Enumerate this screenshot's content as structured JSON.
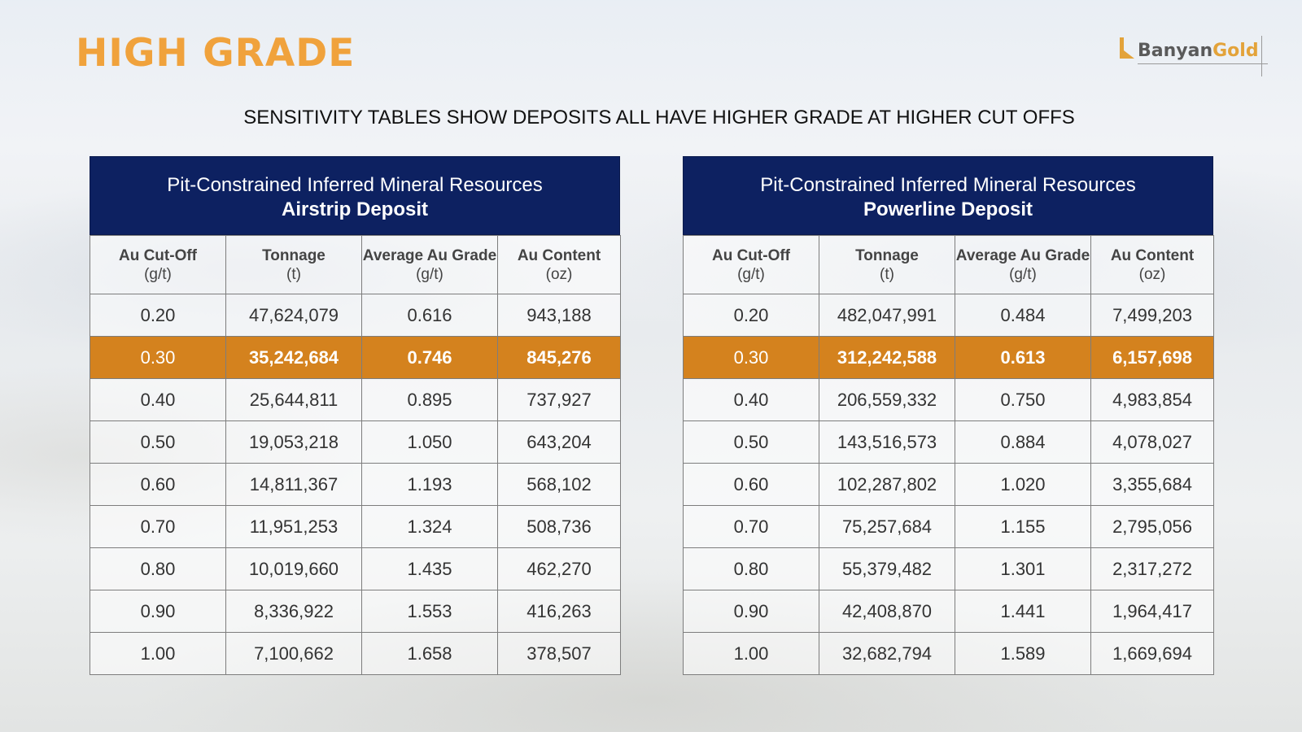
{
  "title": "HIGH GRADE",
  "logo": {
    "part1": "Banyan",
    "part2": "Gold"
  },
  "subtitle": "SENSITIVITY TABLES SHOW DEPOSITS ALL HAVE HIGHER GRADE AT HIGHER CUT OFFS",
  "colors": {
    "title": "#f0a23c",
    "header_bg": "#0d2161",
    "highlight": "#d4821e"
  },
  "columns": [
    {
      "name": "Au Cut-Off",
      "unit": "(g/t)"
    },
    {
      "name": "Tonnage",
      "unit": "(t)"
    },
    {
      "name": "Average Au Grade",
      "unit": "(g/t)"
    },
    {
      "name": "Au Content",
      "unit": "(oz)"
    }
  ],
  "tables": [
    {
      "heading": "Pit-Constrained Inferred Mineral Resources",
      "deposit": "Airstrip Deposit",
      "highlight_row": 1,
      "rows": [
        [
          "0.20",
          "47,624,079",
          "0.616",
          "943,188"
        ],
        [
          "0.30",
          "35,242,684",
          "0.746",
          "845,276"
        ],
        [
          "0.40",
          "25,644,811",
          "0.895",
          "737,927"
        ],
        [
          "0.50",
          "19,053,218",
          "1.050",
          "643,204"
        ],
        [
          "0.60",
          "14,811,367",
          "1.193",
          "568,102"
        ],
        [
          "0.70",
          "11,951,253",
          "1.324",
          "508,736"
        ],
        [
          "0.80",
          "10,019,660",
          "1.435",
          "462,270"
        ],
        [
          "0.90",
          "8,336,922",
          "1.553",
          "416,263"
        ],
        [
          "1.00",
          "7,100,662",
          "1.658",
          "378,507"
        ]
      ]
    },
    {
      "heading": "Pit-Constrained Inferred Mineral Resources",
      "deposit": "Powerline Deposit",
      "highlight_row": 1,
      "rows": [
        [
          "0.20",
          "482,047,991",
          "0.484",
          "7,499,203"
        ],
        [
          "0.30",
          "312,242,588",
          "0.613",
          "6,157,698"
        ],
        [
          "0.40",
          "206,559,332",
          "0.750",
          "4,983,854"
        ],
        [
          "0.50",
          "143,516,573",
          "0.884",
          "4,078,027"
        ],
        [
          "0.60",
          "102,287,802",
          "1.020",
          "3,355,684"
        ],
        [
          "0.70",
          "75,257,684",
          "1.155",
          "2,795,056"
        ],
        [
          "0.80",
          "55,379,482",
          "1.301",
          "2,317,272"
        ],
        [
          "0.90",
          "42,408,870",
          "1.441",
          "1,964,417"
        ],
        [
          "1.00",
          "32,682,794",
          "1.589",
          "1,669,694"
        ]
      ]
    }
  ]
}
